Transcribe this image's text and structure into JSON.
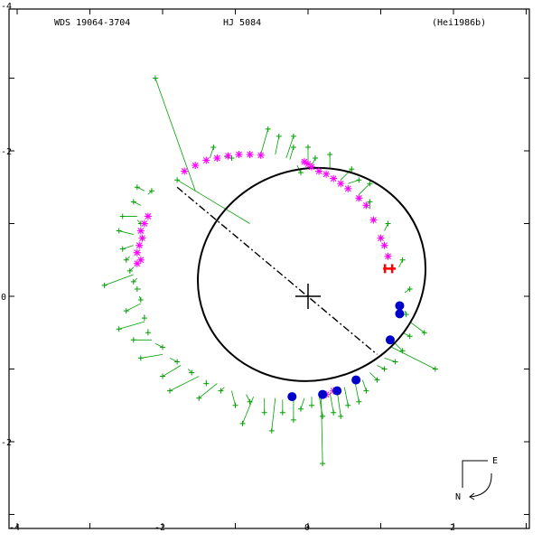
{
  "chart_data": {
    "type": "scatter",
    "title_left": "WDS 19064-3704",
    "title_center": "HJ 5084",
    "title_right": "(Hei1986b)",
    "xlim": [
      -4,
      3.15
    ],
    "ylim": [
      -4,
      3.15
    ],
    "x_ticks": [
      "-4",
      "-2",
      "0",
      "2"
    ],
    "y_ticks": [
      "-4",
      "-2",
      "0"
    ],
    "y_tick_top": "-4",
    "y_tick_mid": "-2",
    "y_tick_zero": "0",
    "y_tick_low": "-2",
    "orbit": {
      "center": [
        0.05,
        0.3
      ],
      "semi_major": 1.58,
      "semi_minor": 1.45,
      "angle_deg": -20
    },
    "node_line": {
      "from": [
        -1.8,
        1.5
      ],
      "to": [
        0.95,
        -0.8
      ]
    },
    "compass": {
      "east": "E",
      "north": "N"
    },
    "colors": {
      "micrometer": "#00a000",
      "speckle": "#ff00ff",
      "special": "#ff0000",
      "recent": "#0000cc",
      "orbit": "#000000"
    },
    "series": [
      {
        "kind": "micrometer",
        "points": [
          [
            -2.1,
            3.0,
            -1.55,
            1.45
          ],
          [
            -1.3,
            2.05,
            -1.35,
            1.9
          ],
          [
            -1.05,
            1.9,
            -1.15,
            1.92
          ],
          [
            -0.55,
            2.3,
            -0.65,
            1.95
          ],
          [
            -0.4,
            2.2,
            -0.45,
            1.95
          ],
          [
            -0.2,
            2.2,
            -0.3,
            1.9
          ],
          [
            -0.2,
            2.05,
            -0.25,
            1.88
          ],
          [
            0.0,
            2.05,
            0.0,
            1.85
          ],
          [
            -0.1,
            1.7,
            -0.15,
            1.8
          ],
          [
            -1.8,
            1.6,
            -0.8,
            1.0
          ],
          [
            -2.35,
            1.5,
            -2.25,
            1.45
          ],
          [
            -2.15,
            1.45,
            -2.2,
            1.4
          ],
          [
            -2.4,
            1.3,
            -2.3,
            1.25
          ],
          [
            -2.55,
            1.1,
            -2.35,
            1.1
          ],
          [
            -2.3,
            1.0,
            -2.35,
            1.05
          ],
          [
            -2.6,
            0.9,
            -2.4,
            0.85
          ],
          [
            -2.55,
            0.65,
            -2.4,
            0.7
          ],
          [
            -2.5,
            0.5,
            -2.45,
            0.55
          ],
          [
            -2.45,
            0.35,
            -2.4,
            0.4
          ],
          [
            -2.4,
            0.2,
            -2.35,
            0.25
          ],
          [
            -2.8,
            0.15,
            -2.4,
            0.3
          ],
          [
            -2.35,
            0.1,
            -2.3,
            0.1
          ],
          [
            -2.3,
            -0.05,
            -2.32,
            0.0
          ],
          [
            -2.5,
            -0.2,
            -2.3,
            -0.1
          ],
          [
            -2.25,
            -0.3,
            -2.25,
            -0.25
          ],
          [
            -2.6,
            -0.45,
            -2.25,
            -0.35
          ],
          [
            -2.2,
            -0.5,
            -2.2,
            -0.45
          ],
          [
            -2.4,
            -0.6,
            -2.15,
            -0.6
          ],
          [
            -2.0,
            -0.7,
            -2.1,
            -0.65
          ],
          [
            -2.3,
            -0.85,
            -2.0,
            -0.8
          ],
          [
            -1.8,
            -0.9,
            -1.9,
            -0.85
          ],
          [
            -2.0,
            -1.1,
            -1.75,
            -0.95
          ],
          [
            -1.6,
            -1.05,
            -1.65,
            -1.0
          ],
          [
            -1.9,
            -1.3,
            -1.5,
            -1.1
          ],
          [
            -1.4,
            -1.2,
            -1.4,
            -1.15
          ],
          [
            -1.5,
            -1.4,
            -1.25,
            -1.2
          ],
          [
            -1.2,
            -1.3,
            -1.15,
            -1.25
          ],
          [
            -1.0,
            -1.5,
            -1.05,
            -1.3
          ],
          [
            -0.8,
            -1.45,
            -0.85,
            -1.35
          ],
          [
            -0.9,
            -1.75,
            -0.75,
            -1.38
          ],
          [
            -0.6,
            -1.6,
            -0.6,
            -1.4
          ],
          [
            -0.5,
            -1.85,
            -0.45,
            -1.4
          ],
          [
            -0.35,
            -1.6,
            -0.35,
            -1.42
          ],
          [
            -0.2,
            -1.7,
            -0.2,
            -1.4
          ],
          [
            -0.1,
            -1.55,
            -0.05,
            -1.4
          ],
          [
            0.05,
            -1.5,
            0.05,
            -1.38
          ],
          [
            0.2,
            -1.65,
            0.15,
            -1.35
          ],
          [
            0.2,
            -2.3,
            0.18,
            -1.35
          ],
          [
            0.35,
            -1.6,
            0.3,
            -1.32
          ],
          [
            0.45,
            -1.65,
            0.4,
            -1.3
          ],
          [
            0.55,
            -1.5,
            0.5,
            -1.25
          ],
          [
            0.7,
            -1.45,
            0.65,
            -1.2
          ],
          [
            0.8,
            -1.3,
            0.75,
            -1.15
          ],
          [
            0.95,
            -1.15,
            0.85,
            -1.05
          ],
          [
            1.05,
            -1.0,
            0.95,
            -0.95
          ],
          [
            1.2,
            -0.9,
            1.05,
            -0.85
          ],
          [
            1.75,
            -1.0,
            1.15,
            -0.7
          ],
          [
            1.3,
            -0.75,
            1.2,
            -0.65
          ],
          [
            1.4,
            -0.55,
            1.3,
            -0.5
          ],
          [
            1.6,
            -0.5,
            1.4,
            -0.35
          ],
          [
            1.35,
            -0.25,
            1.33,
            -0.2
          ],
          [
            1.4,
            0.1,
            1.33,
            0.05
          ],
          [
            1.3,
            0.5,
            1.25,
            0.4
          ],
          [
            1.1,
            1.0,
            1.05,
            0.9
          ],
          [
            0.85,
            1.3,
            0.85,
            1.2
          ],
          [
            0.85,
            1.55,
            0.7,
            1.4
          ],
          [
            0.7,
            1.6,
            0.55,
            1.55
          ],
          [
            0.6,
            1.75,
            0.45,
            1.6
          ],
          [
            0.3,
            1.95,
            0.3,
            1.75
          ],
          [
            0.1,
            1.9,
            0.05,
            1.8
          ],
          [
            -0.05,
            1.85,
            -0.05,
            1.8
          ]
        ]
      },
      {
        "kind": "speckle",
        "points": [
          [
            -1.7,
            1.72
          ],
          [
            -1.55,
            1.8
          ],
          [
            -1.4,
            1.87
          ],
          [
            -1.25,
            1.9
          ],
          [
            -1.1,
            1.93
          ],
          [
            -0.95,
            1.95
          ],
          [
            -0.8,
            1.95
          ],
          [
            -0.65,
            1.94
          ],
          [
            -0.05,
            1.85
          ],
          [
            0.0,
            1.82
          ],
          [
            0.05,
            1.78
          ],
          [
            0.15,
            1.72
          ],
          [
            0.25,
            1.68
          ],
          [
            0.35,
            1.62
          ],
          [
            0.45,
            1.55
          ],
          [
            0.55,
            1.48
          ],
          [
            0.7,
            1.35
          ],
          [
            0.8,
            1.25
          ],
          [
            0.9,
            1.05
          ],
          [
            1.0,
            0.8
          ],
          [
            1.05,
            0.7
          ],
          [
            1.1,
            0.55
          ],
          [
            -2.2,
            1.1
          ],
          [
            -2.25,
            1.0
          ],
          [
            -2.3,
            0.9
          ],
          [
            -2.28,
            0.8
          ],
          [
            -2.32,
            0.7
          ],
          [
            -2.35,
            0.6
          ],
          [
            -2.3,
            0.5
          ],
          [
            -2.35,
            0.45
          ],
          [
            0.35,
            -1.3
          ],
          [
            0.25,
            -1.35
          ],
          [
            0.4,
            -1.3
          ]
        ]
      },
      {
        "kind": "special",
        "points": [
          [
            1.12,
            0.38
          ]
        ]
      },
      {
        "kind": "recent",
        "points": [
          [
            1.26,
            -0.13
          ],
          [
            1.26,
            -0.24
          ],
          [
            1.13,
            -0.6
          ],
          [
            0.66,
            -1.15
          ],
          [
            0.4,
            -1.3
          ],
          [
            0.2,
            -1.35
          ],
          [
            -0.22,
            -1.38
          ]
        ]
      }
    ]
  }
}
